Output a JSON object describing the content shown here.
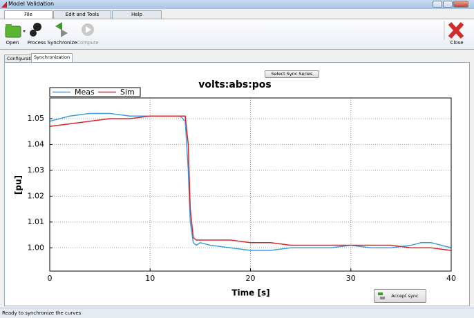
{
  "window": {
    "title": "Model Validation"
  },
  "ribbon_tabs": [
    "File",
    "Edit and Tools",
    "Help"
  ],
  "toolbar": [
    "Open",
    "Process",
    "Synchronize",
    "Compute",
    "Close"
  ],
  "view_tabs": [
    "Configuration",
    "Synchronization"
  ],
  "buttons": {
    "select_sync": "Select Sync Series",
    "accept_sync": "Accept sync"
  },
  "status": "Ready to synchronize the curves",
  "chart_data": {
    "type": "line",
    "title": "volts:abs:pos",
    "xlabel": "Time [s]",
    "ylabel": "[pu]",
    "x": [
      0,
      2,
      4,
      6,
      8,
      10,
      12,
      13,
      13.5,
      13.8,
      14,
      14.3,
      14.6,
      15,
      16,
      18,
      20,
      22,
      24,
      26,
      28,
      30,
      32,
      34,
      36,
      37,
      38,
      40
    ],
    "series": [
      {
        "name": "Meas",
        "color": "#3a9ee0",
        "values": [
          1.049,
          1.051,
          1.052,
          1.052,
          1.051,
          1.051,
          1.051,
          1.051,
          1.049,
          1.03,
          1.01,
          1.002,
          1.001,
          1.002,
          1.001,
          1.0,
          0.999,
          0.999,
          1.0,
          1.0,
          1.0,
          1.001,
          1.0,
          1.0,
          1.001,
          1.002,
          1.002,
          1.0
        ]
      },
      {
        "name": "Sim",
        "color": "#d9262b",
        "values": [
          1.047,
          1.048,
          1.049,
          1.05,
          1.05,
          1.051,
          1.051,
          1.051,
          1.051,
          1.04,
          1.015,
          1.004,
          1.003,
          1.003,
          1.003,
          1.003,
          1.002,
          1.002,
          1.001,
          1.001,
          1.001,
          1.001,
          1.001,
          1.001,
          1.0,
          1.0,
          1.0,
          0.999
        ]
      }
    ],
    "xlim": [
      0,
      40
    ],
    "ylim": [
      0.991,
      1.058
    ],
    "xticks": [
      0,
      10,
      20,
      30,
      40
    ],
    "yticks": [
      {
        "value": 1,
        "label": "1.00"
      },
      1.01,
      1.02,
      1.03,
      1.04,
      1.05
    ],
    "grid": true,
    "legend": "top-left"
  }
}
